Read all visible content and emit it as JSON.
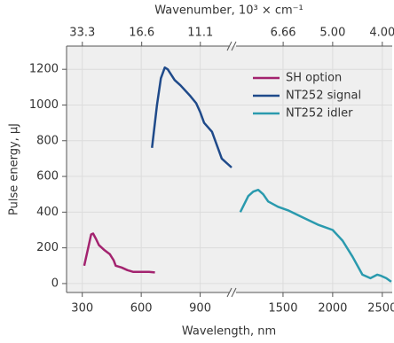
{
  "chart_data": {
    "type": "line",
    "xlabel": "Wavelength, nm",
    "ylabel": "Pulse energy, µJ",
    "x2label": "Wavenumber, 10³ × cm⁻¹",
    "x_segments": [
      [
        220,
        1060
      ],
      [
        1000,
        2600
      ]
    ],
    "xticks": [
      300,
      600,
      900,
      1500,
      2000,
      2500
    ],
    "x2ticks": [
      33.3,
      16.6,
      11.1,
      6.66,
      {
        "value": 5,
        "label": "5.00"
      },
      {
        "value": 4,
        "label": "4.00"
      }
    ],
    "ylim": [
      -50,
      1330
    ],
    "yticks": [
      0,
      200,
      400,
      600,
      800,
      1000,
      1200
    ],
    "grid": true,
    "legend": "upper right",
    "series": [
      {
        "name": "SH option",
        "color": "#a3236f",
        "segment": 0,
        "x": [
          310,
          330,
          345,
          355,
          370,
          385,
          410,
          440,
          460,
          470,
          500,
          530,
          560,
          600,
          640,
          670
        ],
        "values": [
          100,
          200,
          275,
          280,
          250,
          215,
          190,
          165,
          130,
          100,
          90,
          75,
          65,
          65,
          65,
          62
        ]
      },
      {
        "name": "NT252 signal",
        "color": "#1f4a8a",
        "segment": 0,
        "x": [
          655,
          680,
          700,
          720,
          735,
          770,
          800,
          850,
          880,
          900,
          920,
          960,
          990,
          1010,
          1040,
          1060
        ],
        "values": [
          760,
          1000,
          1150,
          1210,
          1200,
          1140,
          1110,
          1050,
          1010,
          960,
          900,
          850,
          760,
          700,
          670,
          650
        ]
      },
      {
        "name": "NT252 idler",
        "color": "#2a9aae",
        "segment": 1,
        "x": [
          1070,
          1150,
          1200,
          1250,
          1300,
          1350,
          1450,
          1550,
          1700,
          1850,
          2000,
          2100,
          2200,
          2300,
          2380,
          2450,
          2480,
          2540,
          2590
        ],
        "values": [
          400,
          490,
          515,
          525,
          500,
          460,
          430,
          410,
          370,
          330,
          300,
          240,
          150,
          50,
          30,
          50,
          45,
          30,
          10
        ]
      }
    ]
  }
}
